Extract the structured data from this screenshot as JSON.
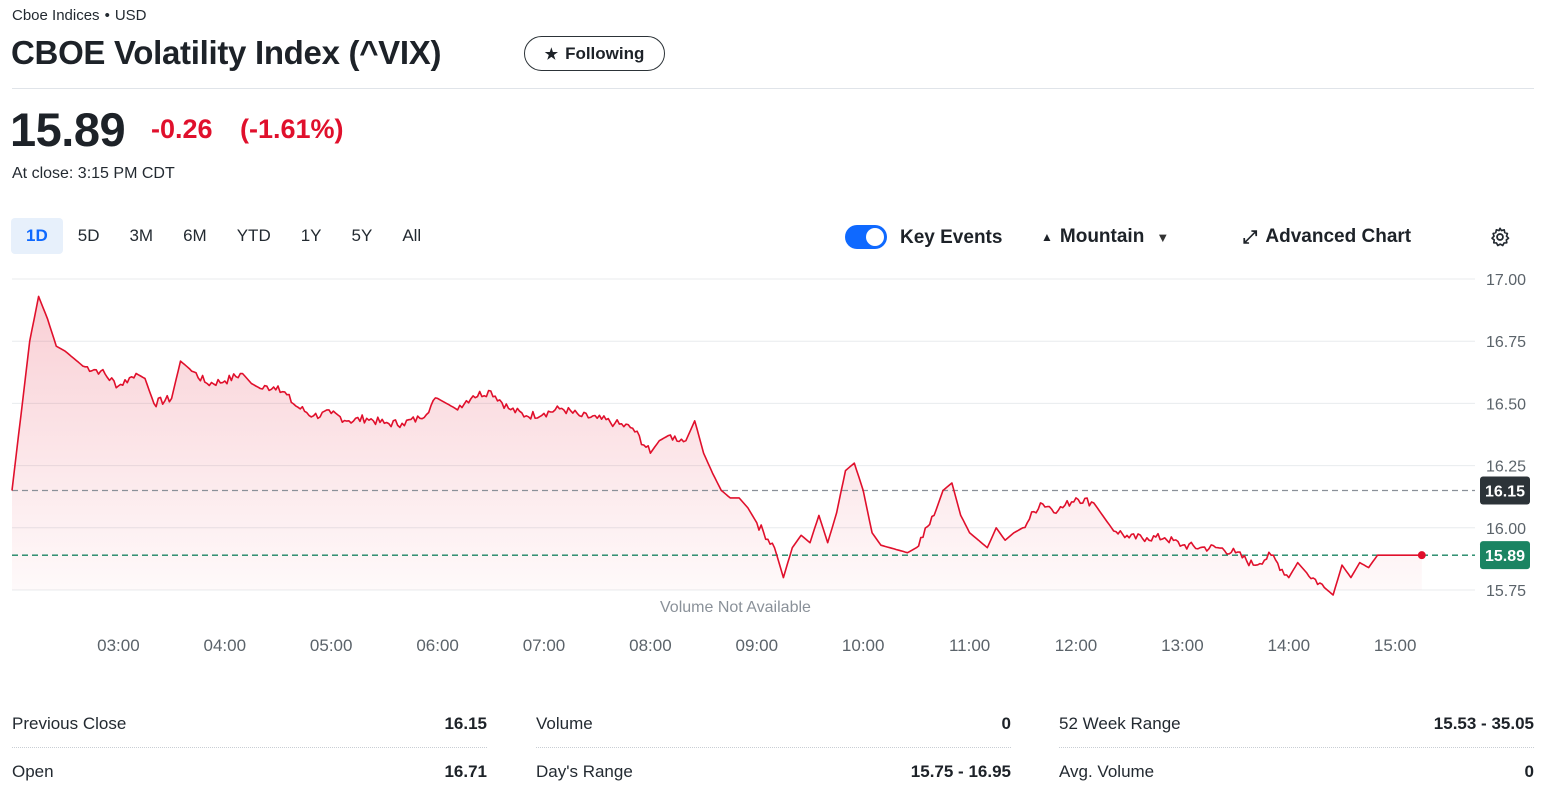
{
  "header": {
    "exchange": "Cboe Indices",
    "currency": "USD",
    "title": "CBOE Volatility Index (^VIX)",
    "follow_label": "Following"
  },
  "quote": {
    "price": "15.89",
    "change": "-0.26",
    "change_pct": "(-1.61%)",
    "close_time": "At close: 3:15 PM CDT"
  },
  "toolbar": {
    "ranges": [
      "1D",
      "5D",
      "3M",
      "6M",
      "YTD",
      "1Y",
      "5Y",
      "All"
    ],
    "active_range": "1D",
    "key_events_label": "Key Events",
    "key_events_on": true,
    "chart_type_label": "Mountain",
    "advanced_label": "Advanced Chart"
  },
  "colors": {
    "line": "#e0102c",
    "prev_close_badge": "#2c3338",
    "price_badge": "#1a8462",
    "accent": "#0f69ff"
  },
  "chart_data": {
    "type": "area",
    "x_ticks": [
      "03:00",
      "04:00",
      "05:00",
      "06:00",
      "07:00",
      "08:00",
      "09:00",
      "10:00",
      "11:00",
      "12:00",
      "13:00",
      "14:00",
      "15:00"
    ],
    "y_ticks": [
      "17.00",
      "16.75",
      "16.50",
      "16.25",
      "16.00",
      "15.75"
    ],
    "ylim": [
      15.75,
      17.0
    ],
    "xlim": [
      "02:00",
      "15:45"
    ],
    "x": [
      "02:00",
      "02:10",
      "02:15",
      "02:20",
      "02:25",
      "02:30",
      "02:35",
      "02:40",
      "02:50",
      "03:00",
      "03:10",
      "03:15",
      "03:20",
      "03:30",
      "03:35",
      "03:40",
      "03:50",
      "04:00",
      "04:10",
      "04:15",
      "04:20",
      "04:30",
      "04:40",
      "04:50",
      "05:00",
      "05:10",
      "05:20",
      "05:30",
      "05:40",
      "05:50",
      "06:00",
      "06:05",
      "06:10",
      "06:20",
      "06:30",
      "06:40",
      "06:50",
      "07:00",
      "07:10",
      "07:20",
      "07:30",
      "07:40",
      "07:50",
      "08:00",
      "08:05",
      "08:10",
      "08:20",
      "08:25",
      "08:30",
      "08:35",
      "08:40",
      "08:45",
      "08:50",
      "08:55",
      "09:00",
      "09:10",
      "09:15",
      "09:20",
      "09:25",
      "09:30",
      "09:35",
      "09:40",
      "09:45",
      "09:50",
      "09:55",
      "10:00",
      "10:05",
      "10:10",
      "10:15",
      "10:20",
      "10:25",
      "10:30",
      "10:40",
      "10:45",
      "10:50",
      "10:55",
      "11:00",
      "11:05",
      "11:10",
      "11:15",
      "11:20",
      "11:25",
      "11:30",
      "11:40",
      "11:50",
      "12:00",
      "12:10",
      "12:15",
      "12:20",
      "12:30",
      "12:40",
      "12:50",
      "13:00",
      "13:10",
      "13:20",
      "13:30",
      "13:40",
      "13:50",
      "14:00",
      "14:05",
      "14:10",
      "14:20",
      "14:25",
      "14:30",
      "14:35",
      "14:40",
      "14:45",
      "14:50",
      "14:55",
      "15:00",
      "15:05",
      "15:10",
      "15:15"
    ],
    "values": [
      16.15,
      16.75,
      16.93,
      16.84,
      16.73,
      16.71,
      16.68,
      16.65,
      16.63,
      16.57,
      16.62,
      16.6,
      16.5,
      16.52,
      16.67,
      16.64,
      16.58,
      16.59,
      16.62,
      16.58,
      16.56,
      16.57,
      16.49,
      16.45,
      16.46,
      16.43,
      16.44,
      16.42,
      16.42,
      16.44,
      16.52,
      16.5,
      16.48,
      16.53,
      16.55,
      16.48,
      16.45,
      16.46,
      16.48,
      16.45,
      16.44,
      16.42,
      16.4,
      16.3,
      16.35,
      16.37,
      16.35,
      16.43,
      16.3,
      16.22,
      16.15,
      16.12,
      16.12,
      16.08,
      16.02,
      15.92,
      15.8,
      15.92,
      15.97,
      15.94,
      16.05,
      15.94,
      16.06,
      16.23,
      16.26,
      16.15,
      15.98,
      15.93,
      15.92,
      15.91,
      15.9,
      15.92,
      16.05,
      16.15,
      16.18,
      16.05,
      15.98,
      15.95,
      15.92,
      16.0,
      15.95,
      15.98,
      16.0,
      16.1,
      16.07,
      16.12,
      16.1,
      16.05,
      16.0,
      15.96,
      15.96,
      15.96,
      15.93,
      15.92,
      15.92,
      15.9,
      15.85,
      15.89,
      15.8,
      15.86,
      15.82,
      15.76,
      15.73,
      15.85,
      15.8,
      15.86,
      15.84,
      15.89,
      15.89,
      15.89,
      15.89,
      15.89,
      15.89
    ],
    "reference_lines": [
      {
        "label": "16.15",
        "value": 16.15,
        "style": "dashed-gray"
      },
      {
        "label": "15.89",
        "value": 15.89,
        "style": "dashed-green"
      }
    ],
    "volume_note": "Volume Not Available"
  },
  "stats": [
    [
      {
        "label": "Previous Close",
        "value": "16.15"
      },
      {
        "label": "Open",
        "value": "16.71"
      }
    ],
    [
      {
        "label": "Volume",
        "value": "0"
      },
      {
        "label": "Day's Range",
        "value": "15.75 - 16.95"
      }
    ],
    [
      {
        "label": "52 Week Range",
        "value": "15.53 - 35.05"
      },
      {
        "label": "Avg. Volume",
        "value": "0"
      }
    ]
  ]
}
